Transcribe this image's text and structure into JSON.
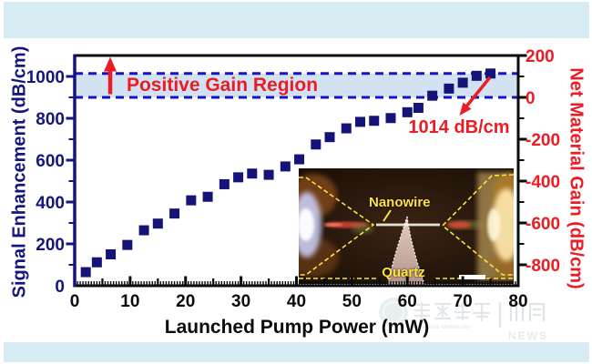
{
  "chart_data": {
    "type": "scatter",
    "xlabel": "Launched Pump Power (mW)",
    "ylabel_left": "Signal Enhancement (dB/cm)",
    "ylabel_right": "Net Material Gain (dB/cm)",
    "xlim": [
      0,
      80
    ],
    "ylim_left": [
      0,
      1100
    ],
    "right_axis_equals_left_minus": 900,
    "x_major_ticks": [
      0,
      10,
      20,
      30,
      40,
      50,
      60,
      70,
      80
    ],
    "x_minor_step": 0.5,
    "y_left_ticks": [
      0,
      200,
      400,
      600,
      800,
      1000
    ],
    "y_left_minor_step": 100,
    "y_right_ticks": [
      200,
      0,
      -200,
      -400,
      -600,
      -800
    ],
    "grid": false,
    "legend": "none",
    "marker": {
      "shape": "square",
      "size": 11
    },
    "points": [
      [
        2,
        65
      ],
      [
        4,
        112
      ],
      [
        6.5,
        150
      ],
      [
        9.5,
        195
      ],
      [
        12.5,
        265
      ],
      [
        15,
        297
      ],
      [
        18,
        345
      ],
      [
        21,
        408
      ],
      [
        24,
        425
      ],
      [
        27,
        485
      ],
      [
        29.5,
        518
      ],
      [
        32,
        536
      ],
      [
        35,
        530
      ],
      [
        38,
        570
      ],
      [
        40.5,
        604
      ],
      [
        43.5,
        675
      ],
      [
        46,
        710
      ],
      [
        49,
        752
      ],
      [
        51.5,
        783
      ],
      [
        54,
        788
      ],
      [
        57,
        801
      ],
      [
        60,
        829
      ],
      [
        62,
        850
      ],
      [
        64.5,
        908
      ],
      [
        67.5,
        942
      ],
      [
        70,
        970
      ],
      [
        72.5,
        1003
      ],
      [
        75,
        1014
      ]
    ],
    "positive_gain_band": {
      "from_left_value": 900,
      "to_left_value": 1014
    },
    "annotations": {
      "band_label": "Positive Gain Region",
      "max_gain_label": "1014 dB/cm"
    }
  },
  "colors": {
    "page_background": "#ffffff",
    "top_bottom_band": "#d7ebf2",
    "left_axis_navy": "#15157d",
    "marker_navy": "#141478",
    "dashed_blue": "#1313cf",
    "gain_band_fill": "#d3e2f3",
    "annotation_red": "#eb1c24",
    "axis_black": "#0a0a0a",
    "inset_label_yellow": "#ffe23c"
  },
  "inset": {
    "nanowire_label": "Nanowire",
    "quartz_label": "Quartz",
    "scale_bar": "white bar, bottom right"
  },
  "watermark": {
    "university_cn": "清华大学",
    "university_en": "Tsinghua University",
    "divider": "|",
    "news_cn": "新闻",
    "news_en": "NEWS"
  }
}
